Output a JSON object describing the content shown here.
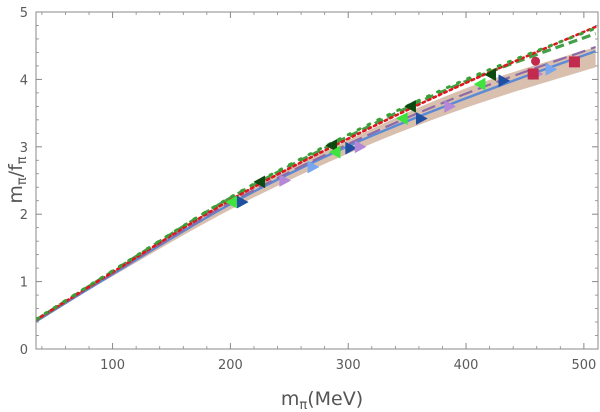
{
  "chart_data": {
    "type": "scatter",
    "title": "",
    "xlabel": "m",
    "xlabel_sub": "π",
    "xlabel_unit": "(MeV)",
    "ylabel": "m",
    "ylabel_sub": "π",
    "ylabel_mid": "/f",
    "ylabel_sub2": "π",
    "xlim": [
      35,
      512
    ],
    "ylim": [
      0,
      5
    ],
    "xticks": [
      100,
      200,
      300,
      400,
      500
    ],
    "yticks": [
      0,
      1,
      2,
      3,
      4,
      5
    ],
    "band": {
      "name": "uncertainty band",
      "color": "#d9bfae",
      "x": [
        35,
        100,
        200,
        300,
        400,
        510
      ],
      "lower": [
        0.4,
        1.08,
        2.07,
        2.9,
        3.58,
        4.18
      ],
      "upper": [
        0.43,
        1.14,
        2.22,
        3.1,
        3.87,
        4.48
      ]
    },
    "curves": [
      {
        "name": "fit solid",
        "color": "#5b8ad6",
        "style": "solid",
        "x": [
          35,
          100,
          200,
          300,
          400,
          510
        ],
        "y": [
          0.41,
          1.11,
          2.15,
          3.01,
          3.72,
          4.42
        ]
      },
      {
        "name": "fit long-dashed",
        "color": "#8c6ba8",
        "style": "longdash",
        "x": [
          35,
          100,
          200,
          300,
          400,
          510
        ],
        "y": [
          0.42,
          1.12,
          2.17,
          3.04,
          3.79,
          4.48
        ]
      },
      {
        "name": "fit dashed green",
        "color": "#43a047",
        "style": "dashed",
        "x": [
          35,
          100,
          200,
          300,
          400,
          510
        ],
        "y": [
          0.43,
          1.15,
          2.24,
          3.15,
          3.97,
          4.68
        ]
      },
      {
        "name": "fit dotted red",
        "color": "#e0161e",
        "style": "dotted",
        "x": [
          35,
          100,
          200,
          300,
          400,
          510
        ],
        "y": [
          0.43,
          1.14,
          2.21,
          3.12,
          3.95,
          4.78
        ]
      },
      {
        "name": "fit dotted green",
        "color": "#3aa036",
        "style": "sparsedot",
        "x": [
          35,
          100,
          200,
          300,
          400,
          510
        ],
        "y": [
          0.44,
          1.16,
          2.25,
          3.18,
          4.0,
          4.76
        ]
      }
    ],
    "series": [
      {
        "name": "dark green triangles",
        "marker": "triangle-left",
        "color": "#0d4a10",
        "x": [
          225,
          286,
          353,
          421
        ],
        "y": [
          2.48,
          3.02,
          3.6,
          4.07
        ]
      },
      {
        "name": "bright green triangles",
        "marker": "triangle-left",
        "color": "#3ee33e",
        "x": [
          201,
          289,
          346,
          412
        ],
        "y": [
          2.18,
          2.92,
          3.42,
          3.93
        ]
      },
      {
        "name": "blue triangles",
        "marker": "triangle-right",
        "color": "#1f4fa0",
        "x": [
          210,
          302,
          362,
          432
        ],
        "y": [
          2.18,
          2.98,
          3.42,
          3.98
        ]
      },
      {
        "name": "light blue triangles",
        "marker": "triangle-right",
        "color": "#79a6ee",
        "x": [
          270,
          472
        ],
        "y": [
          2.7,
          4.15
        ]
      },
      {
        "name": "violet triangles",
        "marker": "triangle-right",
        "color": "#b487d8",
        "x": [
          246,
          310,
          386,
          460
        ],
        "y": [
          2.5,
          3.0,
          3.6,
          4.08
        ]
      },
      {
        "name": "red squares",
        "marker": "square",
        "color": "#c22a4e",
        "x": [
          457,
          492
        ],
        "y": [
          4.08,
          4.26
        ]
      },
      {
        "name": "red circle",
        "marker": "circle",
        "color": "#c22a4e",
        "x": [
          459
        ],
        "y": [
          4.27
        ]
      }
    ]
  }
}
